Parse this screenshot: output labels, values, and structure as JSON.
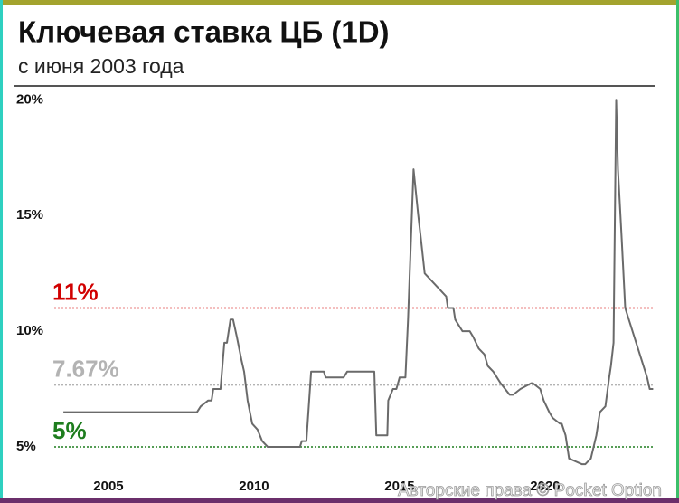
{
  "chart_data": {
    "type": "line",
    "title": "Ключевая ставка ЦБ (1D)",
    "subtitle": "с июня 2003 года",
    "annotation": "Авторские права © Pocket Option",
    "x": [
      2003.45,
      2008.04,
      2008.17,
      2008.42,
      2008.54,
      2008.6,
      2008.85,
      2008.98,
      2009.07,
      2009.19,
      2009.28,
      2009.41,
      2009.57,
      2009.66,
      2009.78,
      2009.94,
      2010.12,
      2010.28,
      2010.47,
      2011.58,
      2011.64,
      2011.8,
      2011.96,
      2012.4,
      2012.46,
      2013.08,
      2013.2,
      2014.13,
      2014.2,
      2014.58,
      2014.61,
      2014.77,
      2014.89,
      2015.0,
      2015.2,
      2015.29,
      2015.48,
      2015.64,
      2015.73,
      2015.86,
      2016.6,
      2016.66,
      2016.85,
      2016.91,
      2017.16,
      2017.41,
      2017.53,
      2017.72,
      2017.91,
      2018.03,
      2018.22,
      2018.47,
      2018.78,
      2018.9,
      2019.15,
      2019.52,
      2019.58,
      2019.83,
      2019.95,
      2020.14,
      2020.26,
      2020.51,
      2020.57,
      2020.7,
      2020.82,
      2021.26,
      2021.38,
      2021.57,
      2021.76,
      2021.88,
      2022.07,
      2022.2,
      2022.26,
      2022.35,
      2022.44,
      2022.5,
      2022.63,
      2022.75,
      2023.5,
      2023.59,
      2023.71
    ],
    "values": [
      6.5,
      6.5,
      6.75,
      7.0,
      7.0,
      7.5,
      7.5,
      9.5,
      9.5,
      10.5,
      10.5,
      9.75,
      8.75,
      8.25,
      7.0,
      6.0,
      5.75,
      5.25,
      5.0,
      5.0,
      5.25,
      5.25,
      8.25,
      8.25,
      8.0,
      8.0,
      8.25,
      8.25,
      5.5,
      5.5,
      7.0,
      7.5,
      7.5,
      8.0,
      8.0,
      10.5,
      17.0,
      15.0,
      14.0,
      12.5,
      11.5,
      11.0,
      11.0,
      10.5,
      10.0,
      10.0,
      9.75,
      9.25,
      9.0,
      8.5,
      8.25,
      7.75,
      7.25,
      7.25,
      7.5,
      7.75,
      7.75,
      7.5,
      7.0,
      6.5,
      6.25,
      6.0,
      6.0,
      5.5,
      4.5,
      4.25,
      4.25,
      4.5,
      5.5,
      6.5,
      6.75,
      8.0,
      8.5,
      9.5,
      20.0,
      17.0,
      14.0,
      11.0,
      8.0,
      7.5,
      7.5
    ],
    "color": "#6a6a6a",
    "xlim": [
      2001.74,
      2023.79
    ],
    "ylim": [
      3.2,
      20.6
    ],
    "xticks": [
      2005,
      2010,
      2015,
      2020
    ],
    "yticks": [
      {
        "value": 5,
        "label": "5%"
      },
      {
        "value": 10,
        "label": "10%"
      },
      {
        "value": 15,
        "label": "15%"
      },
      {
        "value": 20,
        "label": "20%"
      }
    ],
    "reference_lines": [
      {
        "value": 11,
        "label": "11%",
        "color": "#d10000"
      },
      {
        "value": 7.67,
        "label": "7.67%",
        "color": "#b3b3b3"
      },
      {
        "value": 5,
        "label": "5%",
        "color": "#1e7d1e"
      }
    ]
  }
}
